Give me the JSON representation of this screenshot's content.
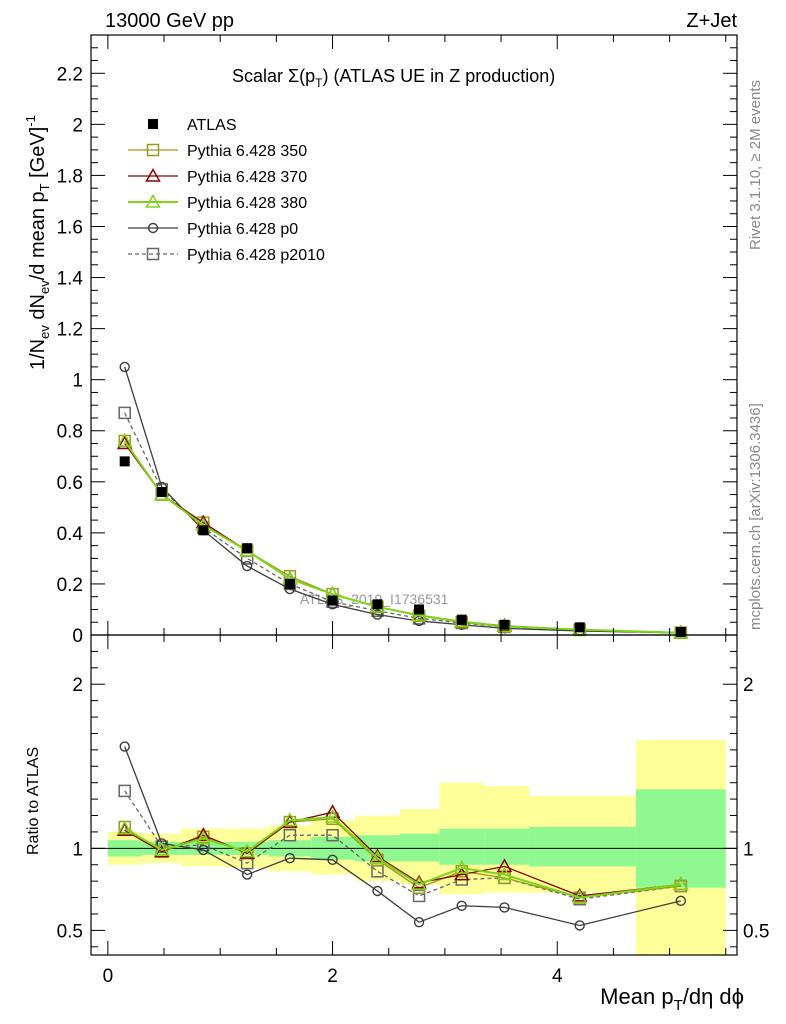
{
  "header": {
    "left": "13000 GeV pp",
    "right": "Z+Jet"
  },
  "plot_title": {
    "prefix": "Scalar Σ(p",
    "sub": "T",
    "suffix": ")  (ATLAS UE in Z production)"
  },
  "side_labels": {
    "rivet": "Rivet 3.1.10, ≥ 2M events",
    "mcplots": "mcplots.cern.ch [arXiv:1306.3436]"
  },
  "watermark": "ATLAS_2019_I1736531",
  "y_axis_label": {
    "p1": "1/N",
    "s1": "ev",
    "p2": " dN",
    "s2": "ev",
    "p3": "/d mean p",
    "s3": "T",
    "p4": " [GeV]",
    "sup": "-1"
  },
  "ratio_axis_label": "Ratio to ATLAS",
  "x_axis_label": {
    "p1": "Mean p",
    "s1": "T",
    "p2": "/dη dϕ"
  },
  "colors": {
    "atlas": "#000000",
    "p350": "#9a9a1e",
    "p370": "#8b0000",
    "p380": "#7fd41a",
    "p0": "#3c3c3c",
    "p2010": "#666666",
    "band_inner": "#90f890",
    "band_outer": "#ffff99"
  },
  "chart_data": {
    "type": "line",
    "main_panel": {
      "xlim": [
        -0.15,
        5.6
      ],
      "ylim": [
        0,
        2.35
      ],
      "yticks": [
        0,
        0.2,
        0.4,
        0.6,
        0.8,
        1,
        1.2,
        1.4,
        1.6,
        1.8,
        2,
        2.2
      ],
      "ytick_labels": [
        "0",
        "0.2",
        "0.4",
        "0.6",
        "0.8",
        "1",
        "1.2",
        "1.4",
        "1.6",
        "1.8",
        "2",
        "2.2"
      ]
    },
    "ratio_panel": {
      "ylim": [
        0.35,
        2.3
      ],
      "yticks": [
        0.5,
        1,
        2
      ],
      "ytick_labels": [
        "0.5",
        "1",
        "2"
      ]
    },
    "xticks": [
      0,
      2,
      4
    ],
    "xtick_labels": [
      "0",
      "2",
      "4"
    ],
    "x": [
      0.15,
      0.48,
      0.85,
      1.24,
      1.62,
      2.0,
      2.4,
      2.77,
      3.15,
      3.53,
      4.2,
      5.1
    ],
    "bins": [
      [
        0.0,
        0.3
      ],
      [
        0.3,
        0.65
      ],
      [
        0.65,
        1.05
      ],
      [
        1.05,
        1.43
      ],
      [
        1.43,
        1.81
      ],
      [
        1.81,
        2.2
      ],
      [
        2.2,
        2.6
      ],
      [
        2.6,
        2.95
      ],
      [
        2.95,
        3.35
      ],
      [
        3.35,
        3.75
      ],
      [
        3.75,
        4.7
      ],
      [
        4.7,
        5.5
      ]
    ],
    "legend": [
      "ATLAS",
      "Pythia 6.428 350",
      "Pythia 6.428 370",
      "Pythia 6.428 380",
      "Pythia 6.428 p0",
      "Pythia 6.428 p2010"
    ],
    "legend_position": "top-left",
    "atlas": [
      0.68,
      0.56,
      0.41,
      0.34,
      0.2,
      0.135,
      0.12,
      0.1,
      0.06,
      0.04,
      0.03,
      0.012
    ],
    "series": [
      {
        "name": "Pythia 6.428 350",
        "key": "p350",
        "marker": "square-open",
        "dash": "solid",
        "values": [
          0.76,
          0.55,
          0.44,
          0.33,
          0.23,
          0.16,
          0.11,
          0.075,
          0.05,
          0.033,
          0.021,
          0.009
        ],
        "ratio": [
          1.13,
          0.98,
          1.07,
          0.97,
          1.16,
          1.18,
          0.93,
          0.76,
          0.86,
          0.82,
          0.7,
          0.77
        ]
      },
      {
        "name": "Pythia 6.428 370",
        "key": "p370",
        "marker": "triangle-open",
        "dash": "solid",
        "values": [
          0.75,
          0.55,
          0.44,
          0.33,
          0.22,
          0.16,
          0.11,
          0.078,
          0.052,
          0.036,
          0.021,
          0.009
        ],
        "ratio": [
          1.11,
          0.98,
          1.08,
          0.97,
          1.16,
          1.22,
          0.95,
          0.79,
          0.84,
          0.89,
          0.71,
          0.78
        ]
      },
      {
        "name": "Pythia 6.428 380",
        "key": "p380",
        "marker": "triangle-open",
        "dash": "solid",
        "values": [
          0.76,
          0.55,
          0.43,
          0.33,
          0.22,
          0.16,
          0.11,
          0.077,
          0.053,
          0.034,
          0.021,
          0.009
        ],
        "ratio": [
          1.12,
          0.99,
          1.06,
          0.98,
          1.17,
          1.19,
          0.94,
          0.78,
          0.88,
          0.84,
          0.7,
          0.78
        ]
      },
      {
        "name": "Pythia 6.428 p0",
        "key": "p0",
        "marker": "circle-open",
        "dash": "solid",
        "values": [
          1.05,
          0.58,
          0.41,
          0.27,
          0.18,
          0.12,
          0.08,
          0.055,
          0.04,
          0.026,
          0.016,
          0.008
        ],
        "ratio": [
          1.62,
          1.03,
          0.99,
          0.84,
          0.94,
          0.93,
          0.74,
          0.55,
          0.65,
          0.64,
          0.53,
          0.68
        ]
      },
      {
        "name": "Pythia 6.428 p2010",
        "key": "p2010",
        "marker": "square-open",
        "dash": "dashed",
        "values": [
          0.87,
          0.57,
          0.42,
          0.3,
          0.2,
          0.13,
          0.095,
          0.065,
          0.047,
          0.032,
          0.02,
          0.009
        ],
        "ratio": [
          1.35,
          1.01,
          1.02,
          0.91,
          1.08,
          1.08,
          0.86,
          0.71,
          0.81,
          0.82,
          0.69,
          0.77
        ]
      }
    ],
    "band_inner": [
      [
        0.95,
        1.05
      ],
      [
        0.96,
        1.04
      ],
      [
        0.96,
        1.04
      ],
      [
        0.96,
        1.04
      ],
      [
        0.95,
        1.05
      ],
      [
        0.93,
        1.07
      ],
      [
        0.92,
        1.08
      ],
      [
        0.92,
        1.09
      ],
      [
        0.9,
        1.12
      ],
      [
        0.9,
        1.12
      ],
      [
        0.89,
        1.13
      ],
      [
        0.76,
        1.36
      ]
    ],
    "band_outer": [
      [
        0.9,
        1.1
      ],
      [
        0.91,
        1.09
      ],
      [
        0.89,
        1.12
      ],
      [
        0.88,
        1.12
      ],
      [
        0.86,
        1.14
      ],
      [
        0.84,
        1.17
      ],
      [
        0.8,
        1.2
      ],
      [
        0.78,
        1.24
      ],
      [
        0.72,
        1.4
      ],
      [
        0.73,
        1.38
      ],
      [
        0.73,
        1.32
      ],
      [
        0.35,
        1.66
      ]
    ]
  }
}
